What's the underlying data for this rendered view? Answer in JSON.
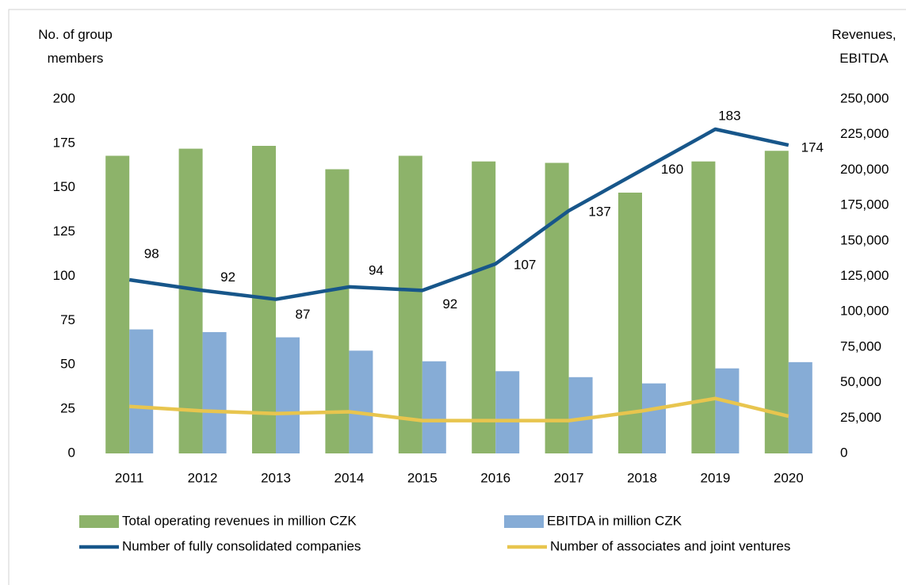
{
  "chart_data": {
    "type": "bar",
    "y_label": "No. of group members",
    "y2_label": "Revenues, EBITDA",
    "categories": [
      "2011",
      "2012",
      "2013",
      "2014",
      "2015",
      "2016",
      "2017",
      "2018",
      "2019",
      "2020"
    ],
    "series": [
      {
        "name": "Total operating revenues in million CZK",
        "type": "bar",
        "axis": "y2",
        "color": "#8db36a",
        "values": [
          210000,
          215000,
          217000,
          200500,
          210000,
          206000,
          205000,
          184000,
          206000,
          213500
        ]
      },
      {
        "name": "EBITDA in million CZK",
        "type": "bar",
        "axis": "y2",
        "color": "#86acd6",
        "values": [
          87500,
          85600,
          81900,
          72500,
          65000,
          58000,
          53800,
          49400,
          60000,
          64400
        ]
      },
      {
        "name": "Number of fully consolidated companies",
        "type": "line",
        "axis": "y",
        "color": "#17568a",
        "values": [
          98,
          92,
          87,
          94,
          92,
          107,
          137,
          160,
          183,
          174
        ],
        "data_labels": true
      },
      {
        "name": "Number of associates and joint ventures",
        "type": "line",
        "axis": "y",
        "color": "#e8c54e",
        "values": [
          26.5,
          24,
          22.5,
          23.5,
          18.5,
          18.5,
          18.5,
          24,
          31,
          21
        ]
      }
    ],
    "ylim": [
      0,
      200
    ],
    "yticks": [
      0,
      25,
      50,
      75,
      100,
      125,
      150,
      175,
      200
    ],
    "y2lim": [
      0,
      250000
    ],
    "y2ticks": [
      0,
      {
        "value": 25000,
        "label": "25,000"
      },
      {
        "value": 50000,
        "label": "50,000"
      },
      {
        "value": 75000,
        "label": "75,000"
      },
      {
        "value": 100000,
        "label": "100,000"
      },
      {
        "value": 125000,
        "label": "125,000"
      },
      {
        "value": 150000,
        "label": "150,000"
      },
      {
        "value": 175000,
        "label": "175,000"
      },
      {
        "value": 200000,
        "label": "200,000"
      },
      {
        "value": 225000,
        "label": "225,000"
      },
      {
        "value": 250000,
        "label": "250,000"
      }
    ],
    "grid": false,
    "legend": "bottom"
  }
}
